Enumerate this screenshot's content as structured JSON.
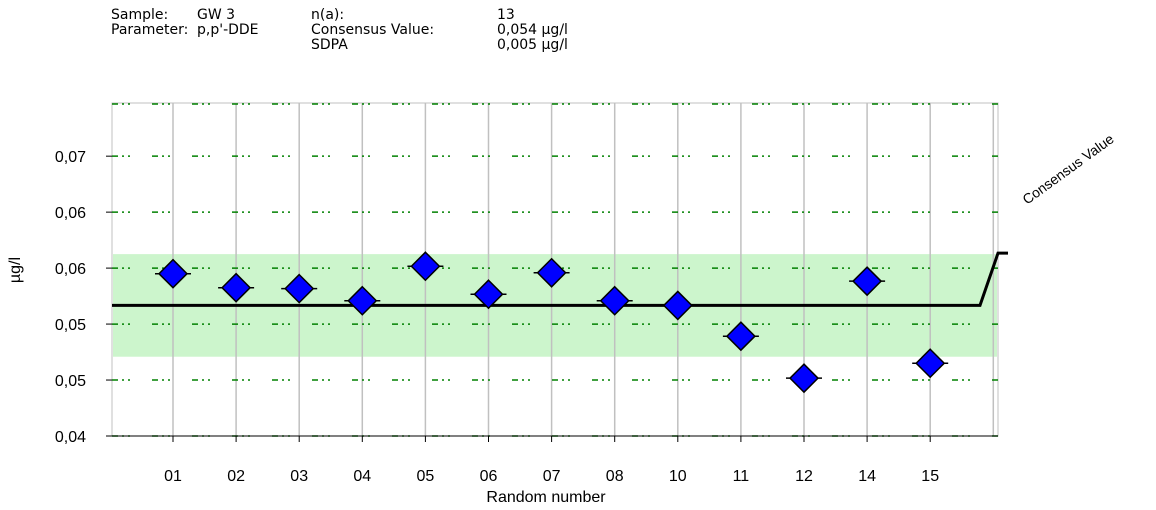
{
  "header": {
    "sample_label": "Sample:",
    "sample_value": "GW 3",
    "parameter_label": "Parameter:",
    "parameter_value": "p,p'-DDE",
    "na_label": "n(a):",
    "na_value": "13",
    "consensus_label": "Consensus Value:",
    "consensus_value": "0,054 µg/l",
    "sdpa_label": "SDPA",
    "sdpa_value": "0,005 µg/l"
  },
  "chart_data": {
    "type": "scatter",
    "xlabel": "Random number",
    "ylabel": "µg/l",
    "categories": [
      "01",
      "02",
      "03",
      "04",
      "05",
      "06",
      "07",
      "08",
      "10",
      "11",
      "12",
      "14",
      "15"
    ],
    "values": [
      0.0574,
      0.0559,
      0.0558,
      0.0545,
      0.0582,
      0.0552,
      0.0575,
      0.0545,
      0.054,
      0.0507,
      0.0462,
      0.0566,
      0.0478
    ],
    "y_ticks": [
      0.04,
      0.046,
      0.052,
      0.058,
      0.064,
      0.07
    ],
    "y_tick_labels": [
      "0,04",
      "0,05",
      "0,05",
      "0,06",
      "0,06",
      "0,07"
    ],
    "ylim": [
      0.04,
      0.0757
    ],
    "consensus_value": 0.054,
    "tolerance_band": [
      0.0485,
      0.0595
    ],
    "consensus_label": "Consensus Value",
    "colors": {
      "marker": "#0000ff",
      "band": "#ccf5cc",
      "consensus_line": "#000000",
      "limit_lines": "#008000",
      "grid": "#c0c0c0"
    }
  }
}
